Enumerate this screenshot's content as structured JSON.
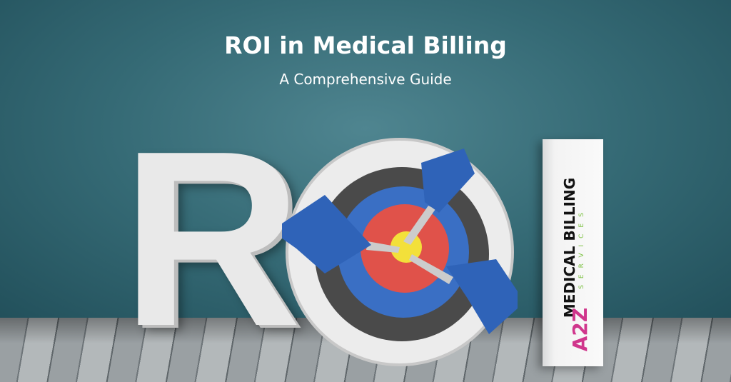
{
  "banner": {
    "title": "ROI in Medical Billing",
    "subtitle": "A Comprehensive Guide",
    "scene_letters": {
      "r": "R",
      "o": "O",
      "i": "I"
    },
    "logo": {
      "mark": "A2Z",
      "name": "MEDICAL BILLING",
      "tagline": "SERVICES"
    }
  },
  "colors": {
    "wall": "#356a75",
    "dart": "#3a6fc4",
    "target_red": "#e0524a",
    "target_yellow": "#f3e03a",
    "logo_green": "#7cc242",
    "logo_pink": "#d0368c"
  }
}
